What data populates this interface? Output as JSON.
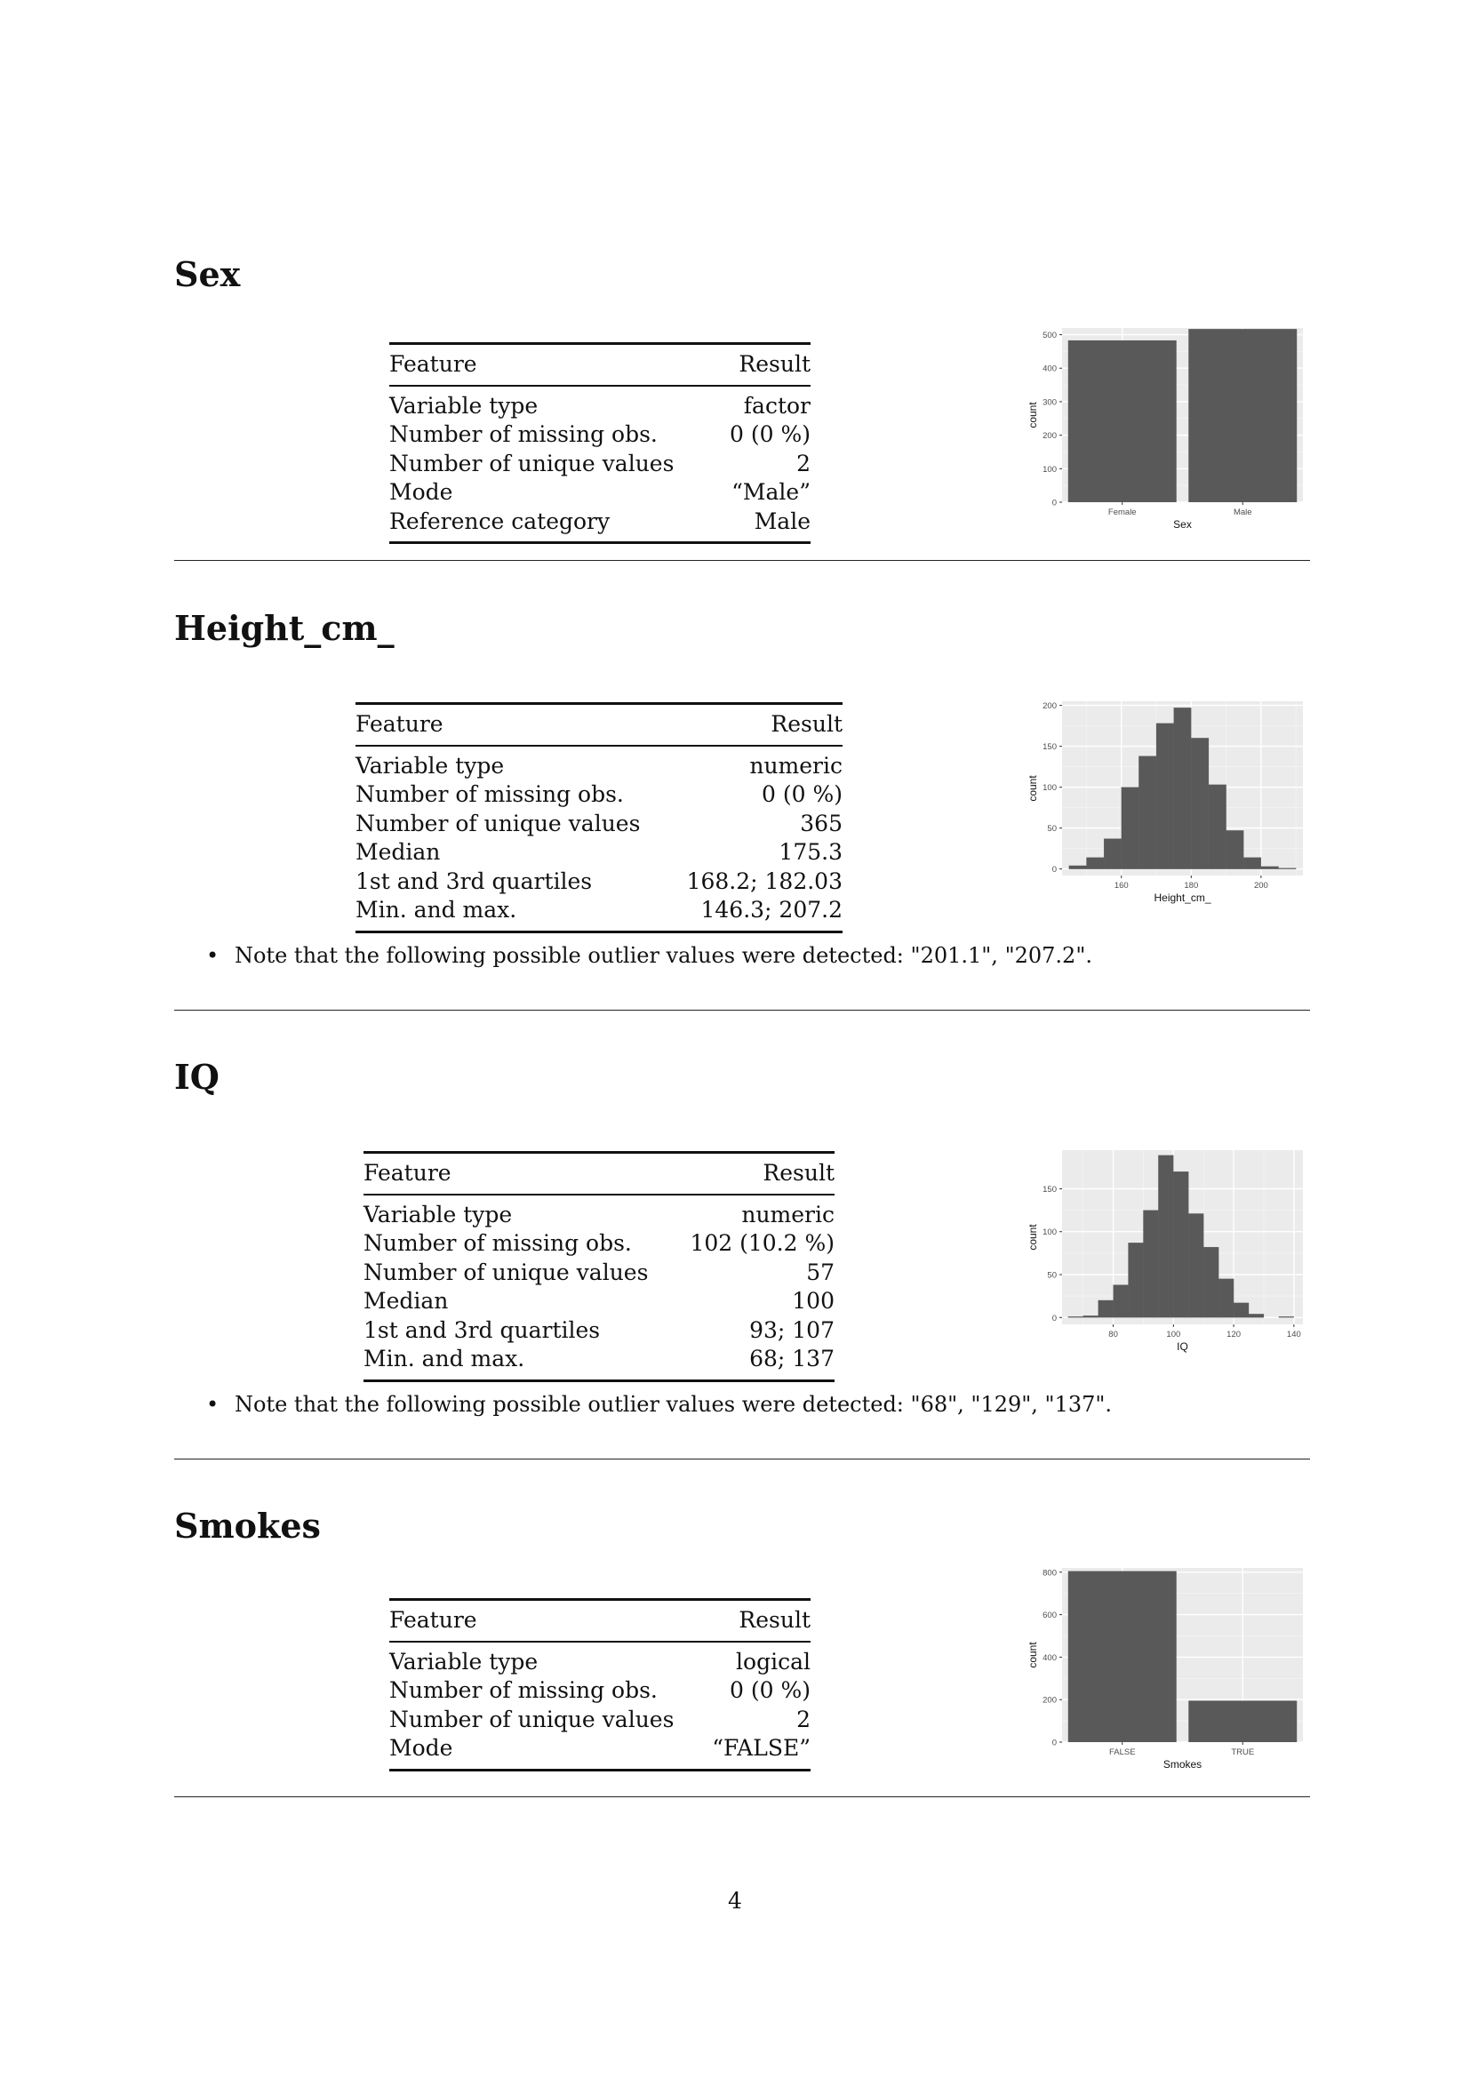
{
  "table_header": {
    "feature": "Feature",
    "result": "Result"
  },
  "variables": [
    {
      "name": "Sex",
      "rows": [
        {
          "feature": "Variable type",
          "result": "factor"
        },
        {
          "feature": "Number of missing obs.",
          "result": "0 (0 %)"
        },
        {
          "feature": "Number of unique values",
          "result": "2"
        },
        {
          "feature": "Mode",
          "result": "“Male”"
        },
        {
          "feature": "Reference category",
          "result": "Male"
        }
      ],
      "note": ""
    },
    {
      "name": "Height_cm_",
      "rows": [
        {
          "feature": "Variable type",
          "result": "numeric"
        },
        {
          "feature": "Number of missing obs.",
          "result": "0 (0 %)"
        },
        {
          "feature": "Number of unique values",
          "result": "365"
        },
        {
          "feature": "Median",
          "result": "175.3"
        },
        {
          "feature": "1st and 3rd quartiles",
          "result": "168.2; 182.03"
        },
        {
          "feature": "Min. and max.",
          "result": "146.3; 207.2"
        }
      ],
      "note": "Note that the following possible outlier values were detected: \"201.1\", \"207.2\"."
    },
    {
      "name": "IQ",
      "rows": [
        {
          "feature": "Variable type",
          "result": "numeric"
        },
        {
          "feature": "Number of missing obs.",
          "result": "102 (10.2 %)"
        },
        {
          "feature": "Number of unique values",
          "result": "57"
        },
        {
          "feature": "Median",
          "result": "100"
        },
        {
          "feature": "1st and 3rd quartiles",
          "result": "93; 107"
        },
        {
          "feature": "Min. and max.",
          "result": "68; 137"
        }
      ],
      "note": "Note that the following possible outlier values were detected: \"68\", \"129\", \"137\"."
    },
    {
      "name": "Smokes",
      "rows": [
        {
          "feature": "Variable type",
          "result": "logical"
        },
        {
          "feature": "Number of missing obs.",
          "result": "0 (0 %)"
        },
        {
          "feature": "Number of unique values",
          "result": "2"
        },
        {
          "feature": "Mode",
          "result": "“FALSE”"
        }
      ],
      "note": ""
    }
  ],
  "page_number": "4",
  "chart_data": [
    {
      "type": "bar",
      "xlabel": "Sex",
      "ylabel": "count",
      "categories": [
        "Female",
        "Male"
      ],
      "values": [
        483,
        517
      ],
      "ylim": [
        0,
        520
      ],
      "yticks": [
        0,
        100,
        200,
        300,
        400,
        500
      ],
      "grid": true
    },
    {
      "type": "bar",
      "subtype": "histogram",
      "xlabel": "Height_cm_",
      "ylabel": "count",
      "bin_edges": [
        145,
        150,
        155,
        160,
        165,
        170,
        175,
        180,
        185,
        190,
        195,
        200,
        205,
        210
      ],
      "values": [
        4,
        14,
        37,
        100,
        138,
        178,
        197,
        160,
        103,
        47,
        14,
        3,
        1
      ],
      "xlim": [
        143,
        212
      ],
      "xticks": [
        160,
        180,
        200
      ],
      "ylim": [
        -8,
        205
      ],
      "yticks": [
        0,
        50,
        100,
        150,
        200
      ],
      "grid": true
    },
    {
      "type": "bar",
      "subtype": "histogram",
      "xlabel": "IQ",
      "ylabel": "count",
      "bin_edges": [
        65,
        70,
        75,
        80,
        85,
        90,
        95,
        100,
        105,
        110,
        115,
        120,
        125,
        130,
        135,
        140
      ],
      "values": [
        1,
        2,
        20,
        38,
        87,
        125,
        189,
        170,
        121,
        82,
        45,
        17,
        4,
        0,
        1
      ],
      "xlim": [
        63,
        143
      ],
      "xticks": [
        80,
        100,
        120,
        140
      ],
      "ylim": [
        -8,
        195
      ],
      "yticks": [
        0,
        50,
        100,
        150
      ],
      "grid": true
    },
    {
      "type": "bar",
      "xlabel": "Smokes",
      "ylabel": "count",
      "categories": [
        "FALSE",
        "TRUE"
      ],
      "values": [
        805,
        195
      ],
      "ylim": [
        0,
        820
      ],
      "yticks": [
        0,
        200,
        400,
        600,
        800
      ],
      "grid": true
    }
  ]
}
